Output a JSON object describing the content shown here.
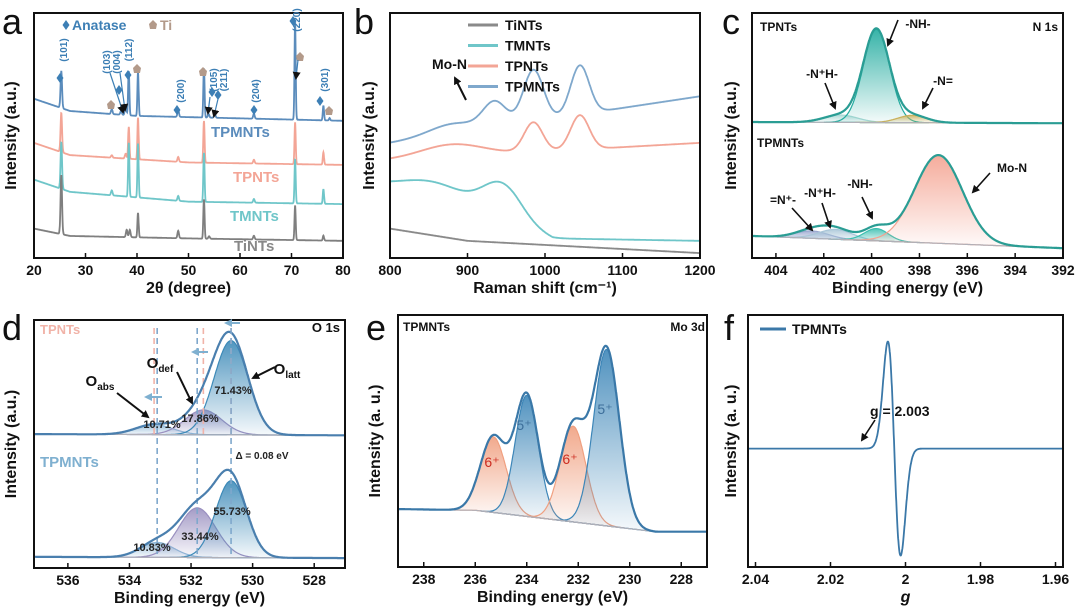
{
  "chart_data": [
    {
      "letter": "a",
      "type": "line",
      "xlabel": "2θ (degree)",
      "ylabel": "Intensity (a.u.)",
      "xlim": [
        20,
        80
      ],
      "xticks": [
        20,
        30,
        40,
        50,
        60,
        70,
        80
      ],
      "ylim": [
        0,
        100
      ],
      "grid": false,
      "series": [
        {
          "name": "TPMNTs",
          "color": "#5b8cbc",
          "baseline": [
            [
              20,
              65
            ],
            [
              27,
              60
            ],
            [
              40,
              58
            ],
            [
              80,
              56
            ]
          ],
          "peaks": [
            [
              25.3,
              15,
              0.15
            ],
            [
              35.1,
              2,
              0.15
            ],
            [
              36.9,
              1.5,
              0.15
            ],
            [
              37.8,
              4,
              0.15
            ],
            [
              38.4,
              18,
              0.12
            ],
            [
              40.2,
              18,
              0.12
            ],
            [
              48.0,
              3,
              0.15
            ],
            [
              53.0,
              20,
              0.12
            ],
            [
              53.9,
              1.5,
              0.15
            ],
            [
              55.1,
              1.5,
              0.15
            ],
            [
              62.7,
              2,
              0.15
            ],
            [
              70.7,
              40,
              0.12
            ],
            [
              76.2,
              6,
              0.12
            ],
            [
              77.4,
              1,
              0.12
            ]
          ]
        },
        {
          "name": "TPNTs",
          "color": "#f3a596",
          "baseline": [
            [
              20,
              47
            ],
            [
              27,
              42
            ],
            [
              50,
              39
            ],
            [
              80,
              38
            ]
          ],
          "peaks": [
            [
              25.3,
              16,
              0.15
            ],
            [
              35.1,
              1,
              0.15
            ],
            [
              37.8,
              2,
              0.15
            ],
            [
              38.4,
              13,
              0.12
            ],
            [
              40.2,
              17,
              0.12
            ],
            [
              48.0,
              2,
              0.15
            ],
            [
              53.0,
              17,
              0.12
            ],
            [
              62.7,
              1.5,
              0.15
            ],
            [
              70.7,
              17,
              0.12
            ],
            [
              76.2,
              5,
              0.12
            ]
          ]
        },
        {
          "name": "TMNTs",
          "color": "#6fc6c9",
          "baseline": [
            [
              20,
              32
            ],
            [
              27,
              27
            ],
            [
              50,
              23
            ],
            [
              80,
              22
            ]
          ],
          "peaks": [
            [
              25.3,
              19,
              0.15
            ],
            [
              35.1,
              2,
              0.15
            ],
            [
              38.4,
              22,
              0.12
            ],
            [
              40.2,
              22,
              0.12
            ],
            [
              48.0,
              2,
              0.15
            ],
            [
              53.0,
              20,
              0.12
            ],
            [
              62.7,
              1.5,
              0.15
            ],
            [
              70.7,
              18,
              0.12
            ],
            [
              76.2,
              6,
              0.12
            ]
          ]
        },
        {
          "name": "TiNTs",
          "color": "#7f7f7f",
          "baseline": [
            [
              20,
              12
            ],
            [
              27,
              9
            ],
            [
              50,
              8
            ],
            [
              80,
              7
            ]
          ],
          "peaks": [
            [
              25.3,
              24,
              0.15
            ],
            [
              38.0,
              3,
              0.15
            ],
            [
              38.6,
              3,
              0.15
            ],
            [
              40.2,
              10,
              0.12
            ],
            [
              48.0,
              3,
              0.15
            ],
            [
              53.0,
              16,
              0.12
            ],
            [
              54.0,
              1,
              0.15
            ],
            [
              62.7,
              1.5,
              0.15
            ],
            [
              70.7,
              14,
              0.12
            ],
            [
              76.2,
              2,
              0.12
            ]
          ]
        }
      ],
      "legend": [
        "Anatase",
        "Ti"
      ],
      "annotations": [
        "(101)",
        "(103)",
        "(004)",
        "(112)",
        "(200)",
        "(105)",
        "(211)",
        "(204)",
        "(220)",
        "(301)"
      ],
      "series_labels": [
        "TPMNTs",
        "TPNTs",
        "TMNTs",
        "TiNTs"
      ]
    },
    {
      "letter": "b",
      "type": "line",
      "xlabel": "Raman shift (cm⁻¹)",
      "ylabel": "Intensity (a.u.)",
      "xlim": [
        800,
        1200
      ],
      "xticks": [
        800,
        900,
        1000,
        1100,
        1200
      ],
      "ylim": [
        0,
        100
      ],
      "grid": false,
      "legend_position": "top-right",
      "series": [
        {
          "name": "TiNTs",
          "color": "#8a8a8a",
          "baseline": [
            [
              800,
              12
            ],
            [
              900,
              7
            ],
            [
              1200,
              2
            ]
          ],
          "peaks": []
        },
        {
          "name": "TMNTs",
          "color": "#6fc6c9",
          "baseline": [
            [
              800,
              28
            ],
            [
              960,
              14
            ],
            [
              1010,
              8
            ],
            [
              1200,
              7
            ]
          ],
          "peaks": [
            [
              860,
              8,
              45
            ],
            [
              945,
              14,
              25
            ]
          ]
        },
        {
          "name": "TPNTs",
          "color": "#f3a596",
          "baseline": [
            [
              800,
              40
            ],
            [
              1200,
              47
            ]
          ],
          "peaks": [
            [
              880,
              5,
              40
            ],
            [
              985,
              12,
              12
            ],
            [
              1045,
              14,
              12
            ]
          ]
        },
        {
          "name": "TPMNTs",
          "color": "#7fa8cc",
          "baseline": [
            [
              800,
              47
            ],
            [
              1200,
              66
            ]
          ],
          "peaks": [
            [
              880,
              4,
              30
            ],
            [
              935,
              10,
              15
            ],
            [
              985,
              21,
              13
            ],
            [
              1045,
              20,
              12
            ]
          ]
        }
      ],
      "annotations": [
        "Mo-N"
      ]
    },
    {
      "letter": "c",
      "type": "line",
      "xlabel": "Binding energy (eV)",
      "ylabel": "Intensity (a.u.)",
      "xlim": [
        405,
        392
      ],
      "xticks": [
        404,
        402,
        400,
        398,
        396,
        394,
        392
      ],
      "ylim": [
        0,
        100
      ],
      "grid": false,
      "series": [
        {
          "name": "TPNTs",
          "color": "#2a9d94",
          "baseline": [
            [
              392,
              55
            ],
            [
              405,
              55.5
            ]
          ],
          "components": [
            {
              "label": "-N⁺H-",
              "position": 401.3,
              "height": 3,
              "width": 0.7,
              "color": "#a9d8d4"
            },
            {
              "label": "-NH-",
              "position": 399.8,
              "height": 38,
              "width": 0.55,
              "color": "#22ab9f"
            },
            {
              "label": "-N=",
              "position": 398.3,
              "height": 3,
              "width": 0.6,
              "color": "#c9b15b"
            }
          ]
        },
        {
          "name": "TPMNTs",
          "color": "#2a9d94",
          "baseline": [
            [
              392,
              4
            ],
            [
              405,
              9
            ]
          ],
          "components": [
            {
              "label": "=N⁺-",
              "position": 402.5,
              "height": 3,
              "width": 0.7,
              "color": "#9aa8d0"
            },
            {
              "label": "-N⁺H-",
              "position": 401.5,
              "height": 4,
              "width": 0.7,
              "color": "#a9c6d8"
            },
            {
              "label": "-NH-",
              "position": 399.8,
              "height": 5,
              "width": 0.5,
              "color": "#3cbfb0"
            },
            {
              "label": "Mo-N",
              "position": 397.2,
              "height": 36,
              "width": 1.0,
              "color": "#f4a290"
            }
          ]
        }
      ],
      "annotations": [
        "TPNTs",
        "N 1s",
        "-NH-",
        "-N⁺H-",
        "-N=",
        "TPMNTs",
        "Mo-N",
        "=N⁺-",
        "-N⁺H-",
        "-NH-"
      ]
    },
    {
      "letter": "d",
      "type": "line",
      "xlabel": "Binding energy (eV)",
      "ylabel": "Intensity (a.u.)",
      "xlim": [
        537.1,
        527
      ],
      "xticks": [
        536,
        534,
        532,
        530,
        528
      ],
      "ylim": [
        0,
        100
      ],
      "grid": false,
      "series": [
        {
          "name": "TPNTs",
          "color": "#4a7fae",
          "dash_color": "#f1b3a8",
          "baseline": [
            [
              527,
              53.5
            ],
            [
              537.1,
              54
            ]
          ],
          "components": [
            {
              "label": "Oabs",
              "position": 533.2,
              "height": 4,
              "width": 0.6,
              "color": "#8fb8d8"
            },
            {
              "label": "Odef",
              "position": 531.6,
              "height": 10,
              "width": 0.6,
              "color": "#9a90c0"
            },
            {
              "label": "Olatt",
              "position": 530.7,
              "height": 38,
              "width": 0.55,
              "color": "#3d8ab8"
            }
          ]
        },
        {
          "name": "TPMNTs",
          "color": "#4a7fae",
          "dash_color": "#7fa8cc",
          "baseline": [
            [
              527,
              4
            ],
            [
              537.1,
              4.5
            ]
          ],
          "components": [
            {
              "label": "Oabs",
              "position": 533.1,
              "height": 6,
              "width": 0.55,
              "color": "#8fb8d8"
            },
            {
              "label": "Odef",
              "position": 531.8,
              "height": 20,
              "width": 0.6,
              "color": "#9a90c0"
            },
            {
              "label": "Olatt",
              "position": 530.7,
              "height": 31,
              "width": 0.5,
              "color": "#3d8ab8"
            }
          ]
        }
      ],
      "annotations": [
        {
          "text": "TPNTs"
        },
        {
          "text": "O 1s"
        },
        {
          "text": "O",
          "sub": "def"
        },
        {
          "text": "O",
          "sub": "abs"
        },
        {
          "text": "O",
          "sub": "latt"
        },
        {
          "text": "71.43%"
        },
        {
          "text": "17.86%"
        },
        {
          "text": "10.71%"
        },
        {
          "text": "TPMNTs"
        },
        {
          "text": "Δ = 0.08 eV"
        },
        {
          "text": "55.73%"
        },
        {
          "text": "33.44%"
        },
        {
          "text": "10.83%"
        }
      ]
    },
    {
      "letter": "e",
      "type": "line",
      "xlabel": "Binding energy (eV)",
      "ylabel": "Intensity (a. u.)",
      "xlim": [
        239,
        227
      ],
      "xticks": [
        238,
        236,
        234,
        232,
        230,
        228
      ],
      "ylim": [
        0,
        100
      ],
      "grid": false,
      "series": [
        {
          "name": "TPMNTs",
          "color": "#3a78a8",
          "baseline": [
            [
              227,
              14
            ],
            [
              229,
              14
            ],
            [
              236,
              22.5
            ],
            [
              239,
              23
            ]
          ],
          "components": [
            {
              "label": "6⁺",
              "position": 235.3,
              "height": 30,
              "width": 0.5,
              "color": "#f0a080"
            },
            {
              "label": "5⁺",
              "position": 234.0,
              "height": 48,
              "width": 0.45,
              "color": "#3d86b8"
            },
            {
              "label": "6⁺",
              "position": 232.2,
              "height": 38,
              "width": 0.5,
              "color": "#f0a080"
            },
            {
              "label": "5⁺",
              "position": 230.9,
              "height": 70,
              "width": 0.5,
              "color": "#3d86b8"
            }
          ]
        }
      ],
      "annotations": [
        "TPMNTs",
        "Mo 3d",
        "5⁺",
        "5⁺",
        "6⁺",
        "6⁺"
      ]
    },
    {
      "letter": "f",
      "type": "line",
      "xlabel": "g",
      "ylabel": "Intensity (a. u.)",
      "xlim": [
        2.042,
        1.958
      ],
      "xticks": [
        2.04,
        2.02,
        2.0,
        1.98,
        1.96
      ],
      "ylim": [
        0,
        100
      ],
      "grid": false,
      "legend_position": "top-left",
      "series": [
        {
          "name": "TPMNTs",
          "color": "#3b78a8",
          "baseline": [
            [
              1.958,
              47
            ],
            [
              2.042,
              47
            ]
          ],
          "derivative": {
            "center": 2.003,
            "amplitude": 70,
            "width": 0.0017
          }
        }
      ],
      "annotations": [
        "g = 2.003"
      ]
    }
  ]
}
